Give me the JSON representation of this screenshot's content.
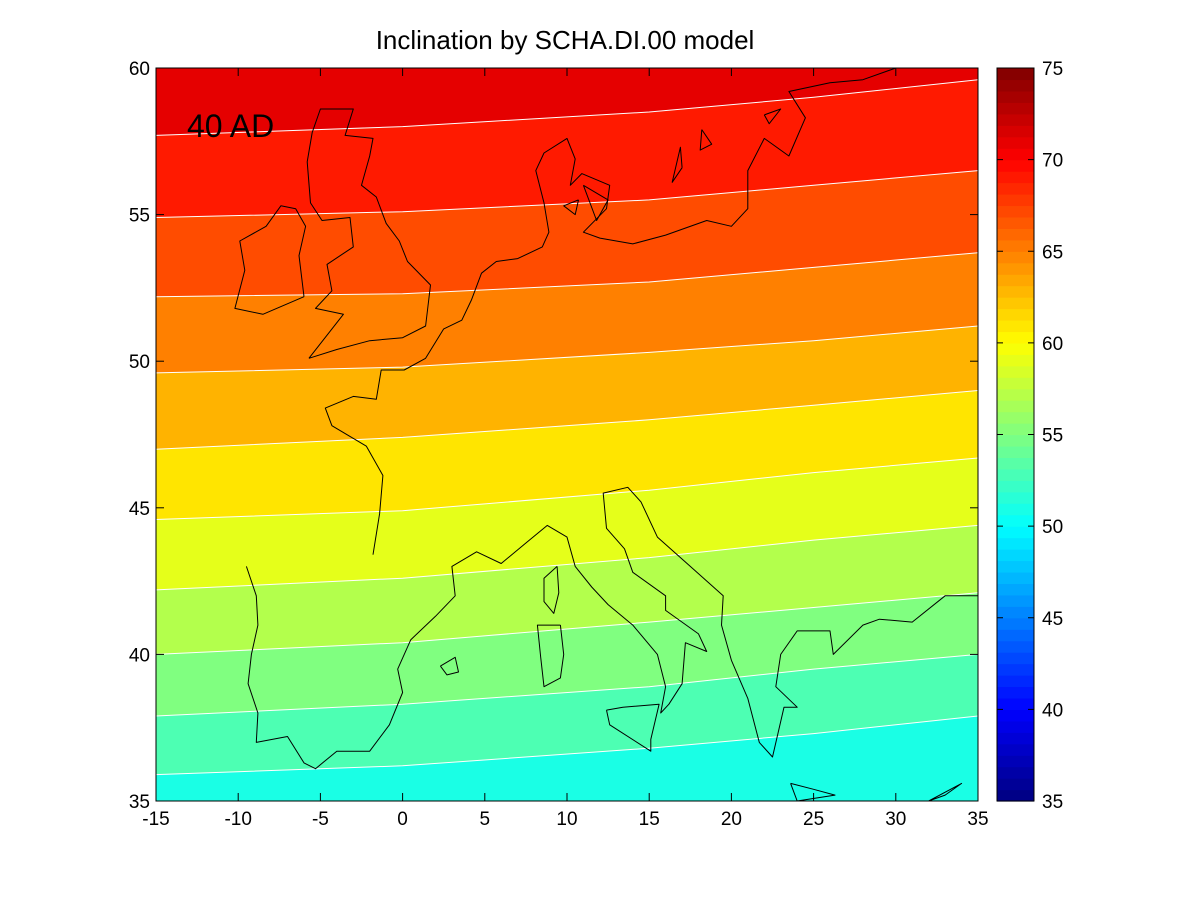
{
  "chart_data": {
    "type": "heatmap",
    "title": "Inclination by SCHA.DI.00 model",
    "annotation": "40 AD",
    "xlim": [
      -15,
      35
    ],
    "ylim": [
      35,
      60
    ],
    "x_ticks": [
      "-15",
      "-10",
      "-5",
      "0",
      "5",
      "10",
      "15",
      "20",
      "25",
      "30",
      "35"
    ],
    "y_ticks": [
      "35",
      "40",
      "45",
      "50",
      "55",
      "60"
    ],
    "colorbar": {
      "range": [
        35,
        75
      ],
      "ticks": [
        "35",
        "40",
        "45",
        "50",
        "55",
        "60",
        "65",
        "70",
        "75"
      ],
      "colormap": "jet"
    },
    "contour_levels": [
      52,
      54,
      56,
      58,
      60,
      62,
      64,
      66,
      68,
      70
    ],
    "contour_lines": [
      {
        "level": 52,
        "points": [
          [
            -15,
            35.9
          ],
          [
            0,
            36.2
          ],
          [
            15,
            36.8
          ],
          [
            25,
            37.3
          ],
          [
            35,
            37.9
          ]
        ]
      },
      {
        "level": 54,
        "points": [
          [
            -15,
            37.9
          ],
          [
            0,
            38.3
          ],
          [
            15,
            38.9
          ],
          [
            25,
            39.5
          ],
          [
            35,
            40.0
          ]
        ]
      },
      {
        "level": 56,
        "points": [
          [
            -15,
            40.0
          ],
          [
            0,
            40.4
          ],
          [
            15,
            41.1
          ],
          [
            25,
            41.6
          ],
          [
            35,
            42.1
          ]
        ]
      },
      {
        "level": 58,
        "points": [
          [
            -15,
            42.2
          ],
          [
            0,
            42.6
          ],
          [
            15,
            43.3
          ],
          [
            25,
            43.9
          ],
          [
            35,
            44.4
          ]
        ]
      },
      {
        "level": 60,
        "points": [
          [
            -15,
            44.6
          ],
          [
            0,
            44.9
          ],
          [
            15,
            45.6
          ],
          [
            25,
            46.2
          ],
          [
            35,
            46.7
          ]
        ]
      },
      {
        "level": 62,
        "points": [
          [
            -15,
            47.0
          ],
          [
            0,
            47.4
          ],
          [
            15,
            48.0
          ],
          [
            25,
            48.5
          ],
          [
            35,
            49.0
          ]
        ]
      },
      {
        "level": 64,
        "points": [
          [
            -15,
            49.6
          ],
          [
            0,
            49.8
          ],
          [
            15,
            50.3
          ],
          [
            25,
            50.7
          ],
          [
            35,
            51.2
          ]
        ]
      },
      {
        "level": 66,
        "points": [
          [
            -15,
            52.2
          ],
          [
            0,
            52.3
          ],
          [
            15,
            52.7
          ],
          [
            25,
            53.2
          ],
          [
            35,
            53.7
          ]
        ]
      },
      {
        "level": 68,
        "points": [
          [
            -15,
            54.9
          ],
          [
            0,
            55.1
          ],
          [
            15,
            55.5
          ],
          [
            25,
            56.0
          ],
          [
            35,
            56.5
          ]
        ]
      },
      {
        "level": 70,
        "points": [
          [
            -15,
            57.7
          ],
          [
            0,
            58.0
          ],
          [
            15,
            58.5
          ],
          [
            25,
            59.0
          ],
          [
            35,
            59.6
          ]
        ]
      }
    ],
    "coastlines": [
      [
        [
          -9.5,
          43.0
        ],
        [
          -8.9,
          42.0
        ],
        [
          -8.8,
          41.0
        ],
        [
          -9.2,
          40.0
        ],
        [
          -9.4,
          39.0
        ],
        [
          -8.8,
          38.0
        ],
        [
          -8.9,
          37.0
        ],
        [
          -7.0,
          37.2
        ],
        [
          -6.0,
          36.3
        ],
        [
          -5.3,
          36.1
        ],
        [
          -4.0,
          36.7
        ],
        [
          -2.0,
          36.7
        ],
        [
          -0.8,
          37.6
        ],
        [
          0.0,
          38.7
        ],
        [
          -0.3,
          39.5
        ],
        [
          0.5,
          40.5
        ],
        [
          2.0,
          41.3
        ],
        [
          3.2,
          42.0
        ],
        [
          3.0,
          43.0
        ],
        [
          4.5,
          43.5
        ],
        [
          6.0,
          43.1
        ],
        [
          7.5,
          43.8
        ],
        [
          8.8,
          44.4
        ],
        [
          10.0,
          44.0
        ],
        [
          10.5,
          43.0
        ],
        [
          11.5,
          42.3
        ],
        [
          12.5,
          41.7
        ],
        [
          14.0,
          41.0
        ],
        [
          15.5,
          40.0
        ],
        [
          16.0,
          38.9
        ],
        [
          15.7,
          38.0
        ],
        [
          16.2,
          38.3
        ],
        [
          17.0,
          39.0
        ],
        [
          17.2,
          40.4
        ],
        [
          18.5,
          40.1
        ],
        [
          18.0,
          40.7
        ],
        [
          16.0,
          41.5
        ],
        [
          16.0,
          42.0
        ],
        [
          14.0,
          42.8
        ],
        [
          13.5,
          43.6
        ],
        [
          12.4,
          44.3
        ],
        [
          12.2,
          45.5
        ],
        [
          13.7,
          45.7
        ],
        [
          14.5,
          45.2
        ],
        [
          15.5,
          44.0
        ],
        [
          17.5,
          43.0
        ],
        [
          19.5,
          42.0
        ],
        [
          19.4,
          41.0
        ],
        [
          20.0,
          39.8
        ],
        [
          21.0,
          38.5
        ],
        [
          21.7,
          37.0
        ],
        [
          22.5,
          36.5
        ],
        [
          23.2,
          38.2
        ],
        [
          24.0,
          38.2
        ],
        [
          22.7,
          38.9
        ],
        [
          23.0,
          40.0
        ],
        [
          24.0,
          40.8
        ],
        [
          26.0,
          40.8
        ],
        [
          26.2,
          40.0
        ],
        [
          28.0,
          41.0
        ],
        [
          29.0,
          41.2
        ],
        [
          31.0,
          41.1
        ],
        [
          33.0,
          42.0
        ],
        [
          35.0,
          42.0
        ]
      ],
      [
        [
          -1.8,
          43.4
        ],
        [
          -1.4,
          44.8
        ],
        [
          -1.2,
          46.1
        ],
        [
          -2.2,
          47.1
        ],
        [
          -4.3,
          47.8
        ],
        [
          -4.7,
          48.4
        ],
        [
          -3.0,
          48.8
        ],
        [
          -1.6,
          48.7
        ],
        [
          -1.3,
          49.7
        ],
        [
          0.1,
          49.7
        ],
        [
          1.4,
          50.1
        ],
        [
          2.5,
          51.1
        ],
        [
          3.6,
          51.4
        ],
        [
          4.2,
          52.1
        ],
        [
          4.8,
          53.0
        ],
        [
          5.7,
          53.4
        ],
        [
          7.0,
          53.5
        ],
        [
          8.5,
          53.9
        ],
        [
          8.9,
          54.4
        ],
        [
          8.6,
          55.4
        ],
        [
          8.1,
          56.5
        ],
        [
          8.6,
          57.1
        ],
        [
          10.0,
          57.6
        ],
        [
          10.5,
          56.9
        ],
        [
          10.2,
          56.0
        ],
        [
          10.9,
          56.4
        ],
        [
          12.6,
          56.0
        ],
        [
          12.4,
          55.2
        ],
        [
          11.0,
          54.4
        ],
        [
          12.0,
          54.2
        ],
        [
          14.0,
          54.0
        ],
        [
          16.0,
          54.3
        ],
        [
          18.5,
          54.8
        ],
        [
          20.0,
          54.6
        ],
        [
          21.0,
          55.2
        ],
        [
          21.0,
          56.5
        ],
        [
          22.0,
          57.6
        ],
        [
          23.5,
          57.0
        ],
        [
          24.5,
          58.3
        ],
        [
          23.5,
          59.2
        ],
        [
          26.0,
          59.5
        ],
        [
          28.0,
          59.6
        ],
        [
          30.0,
          60.0
        ]
      ],
      [
        [
          -5.7,
          50.1
        ],
        [
          -4.0,
          50.4
        ],
        [
          -2.0,
          50.7
        ],
        [
          0.0,
          50.8
        ],
        [
          1.4,
          51.2
        ],
        [
          1.7,
          52.6
        ],
        [
          0.3,
          53.4
        ],
        [
          -0.2,
          54.1
        ],
        [
          -1.0,
          54.7
        ],
        [
          -1.6,
          55.6
        ],
        [
          -2.5,
          56.0
        ],
        [
          -2.0,
          57.0
        ],
        [
          -1.8,
          57.6
        ],
        [
          -3.5,
          57.7
        ],
        [
          -3.0,
          58.6
        ],
        [
          -5.0,
          58.6
        ],
        [
          -5.5,
          57.8
        ],
        [
          -5.8,
          56.8
        ],
        [
          -5.6,
          55.4
        ],
        [
          -4.9,
          54.8
        ],
        [
          -3.2,
          54.9
        ],
        [
          -3.0,
          53.9
        ],
        [
          -4.6,
          53.3
        ],
        [
          -4.3,
          52.4
        ],
        [
          -5.3,
          51.8
        ],
        [
          -3.6,
          51.6
        ],
        [
          -5.7,
          50.1
        ]
      ],
      [
        [
          -6.0,
          52.2
        ],
        [
          -6.3,
          53.6
        ],
        [
          -5.9,
          54.6
        ],
        [
          -6.5,
          55.2
        ],
        [
          -7.4,
          55.3
        ],
        [
          -8.3,
          54.6
        ],
        [
          -9.9,
          54.1
        ],
        [
          -9.6,
          53.1
        ],
        [
          -10.2,
          51.8
        ],
        [
          -8.5,
          51.6
        ],
        [
          -6.0,
          52.2
        ]
      ],
      [
        [
          9.6,
          41.0
        ],
        [
          9.8,
          40.0
        ],
        [
          9.6,
          39.2
        ],
        [
          8.6,
          38.9
        ],
        [
          8.4,
          39.9
        ],
        [
          8.2,
          41.0
        ],
        [
          9.6,
          41.0
        ]
      ],
      [
        [
          9.4,
          43.0
        ],
        [
          9.5,
          42.1
        ],
        [
          9.2,
          41.4
        ],
        [
          8.6,
          41.8
        ],
        [
          8.6,
          42.6
        ],
        [
          9.4,
          43.0
        ]
      ],
      [
        [
          12.4,
          38.1
        ],
        [
          13.4,
          38.2
        ],
        [
          15.6,
          38.3
        ],
        [
          15.1,
          37.1
        ],
        [
          15.1,
          36.7
        ],
        [
          12.6,
          37.6
        ],
        [
          12.4,
          38.1
        ]
      ],
      [
        [
          2.3,
          39.6
        ],
        [
          3.2,
          39.9
        ],
        [
          3.4,
          39.4
        ],
        [
          2.7,
          39.3
        ],
        [
          2.3,
          39.6
        ]
      ],
      [
        [
          23.6,
          35.6
        ],
        [
          25.0,
          35.4
        ],
        [
          26.3,
          35.2
        ],
        [
          24.0,
          35.0
        ],
        [
          23.6,
          35.6
        ]
      ],
      [
        [
          10.7,
          55.5
        ],
        [
          10.5,
          55.0
        ],
        [
          9.8,
          55.3
        ],
        [
          10.7,
          55.5
        ]
      ],
      [
        [
          11.0,
          56.0
        ],
        [
          12.5,
          55.5
        ],
        [
          11.8,
          54.8
        ],
        [
          11.0,
          56.0
        ]
      ],
      [
        [
          17.0,
          56.6
        ],
        [
          16.4,
          56.1
        ],
        [
          16.9,
          57.3
        ],
        [
          17.0,
          56.6
        ]
      ],
      [
        [
          18.2,
          57.9
        ],
        [
          18.8,
          57.4
        ],
        [
          18.1,
          57.2
        ],
        [
          18.2,
          57.9
        ]
      ],
      [
        [
          22.0,
          58.4
        ],
        [
          23.0,
          58.6
        ],
        [
          22.3,
          58.1
        ],
        [
          22.0,
          58.4
        ]
      ],
      [
        [
          32.0,
          35.0
        ],
        [
          34.0,
          35.6
        ],
        [
          33.0,
          35.2
        ],
        [
          32.0,
          35.0
        ]
      ]
    ]
  }
}
